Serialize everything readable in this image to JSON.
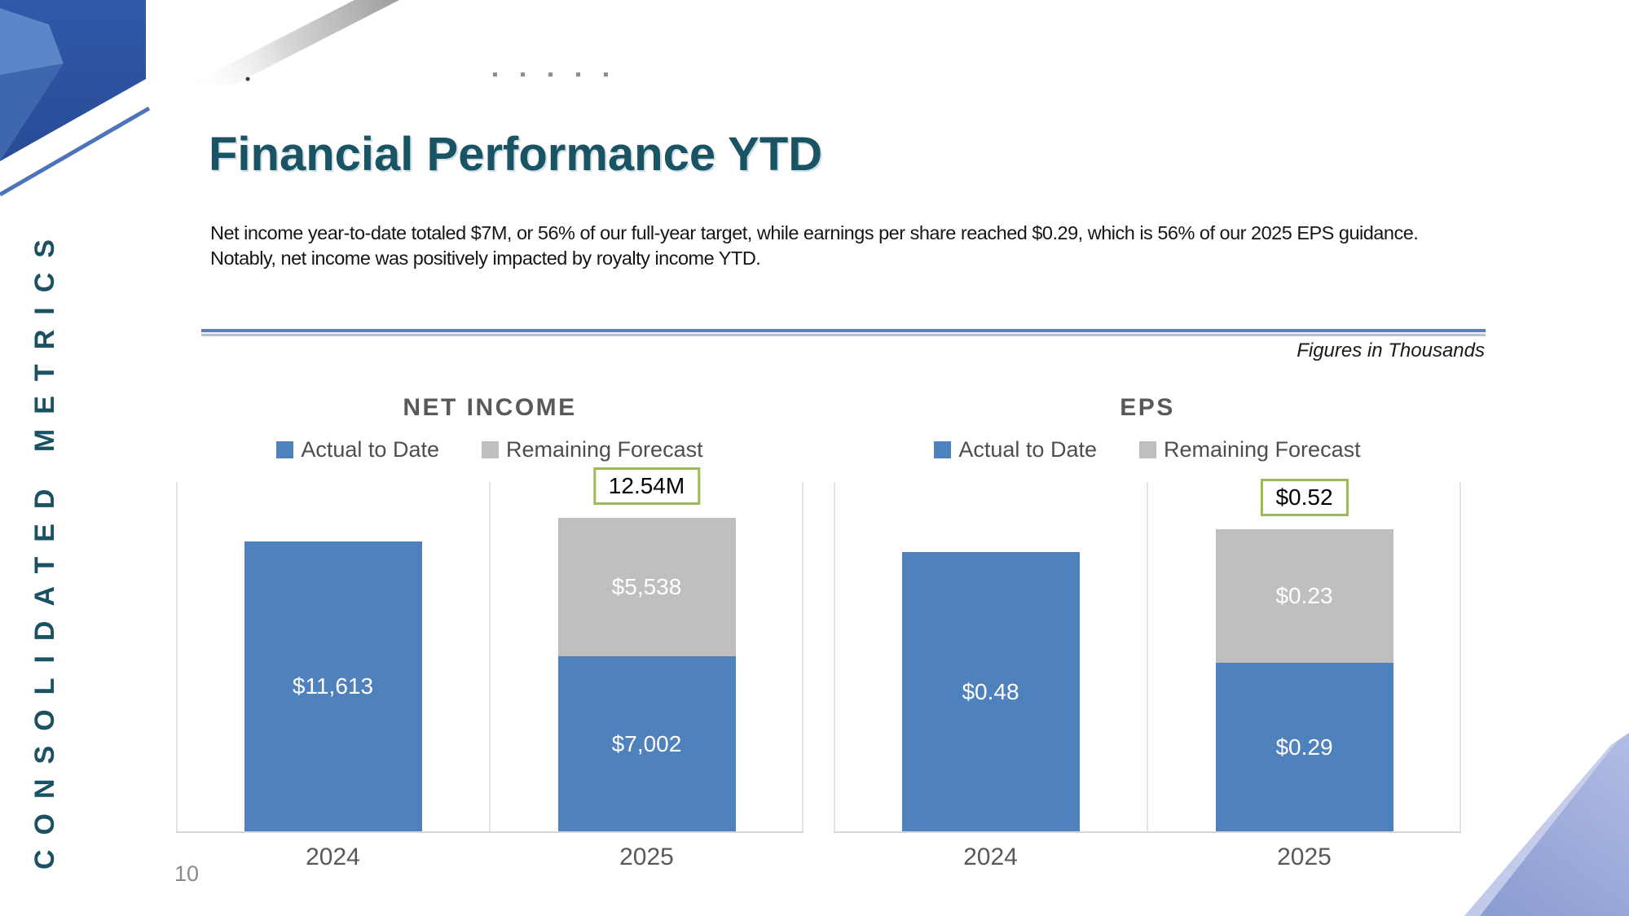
{
  "slide": {
    "title": "Financial Performance YTD",
    "body_text": "Net income year-to-date totaled $7M, or 56% of our full-year target, while earnings per share reached $0.29, which is 56% of our 2025 EPS guidance. Notably, net income was positively impacted by royalty income YTD.",
    "side_label": "CONSOLIDATED METRICS",
    "figures_note": "Figures in Thousands",
    "page_number": "10"
  },
  "colors": {
    "accent_teal": "#1A5263",
    "bar_actual_blue": "#4F81BD",
    "bar_forecast_gray": "#BFBFBF",
    "chart_text_gray": "#595959",
    "total_box_border_green": "#9BBB59",
    "divider_blue": "#5B7FB9",
    "axis_line_gray": "#D9D9D9"
  },
  "chart_data": [
    {
      "type": "bar",
      "stacked": true,
      "title": "NET INCOME",
      "categories": [
        "2024",
        "2025"
      ],
      "series": [
        {
          "name": "Actual to Date",
          "color": "#4F81BD",
          "values": [
            11613,
            7002
          ],
          "labels": [
            "$11,613",
            "$7,002"
          ]
        },
        {
          "name": "Remaining Forecast",
          "color": "#BFBFBF",
          "values": [
            null,
            5538
          ],
          "labels": [
            null,
            "$5,538"
          ]
        }
      ],
      "total_labels": [
        null,
        "12.54M"
      ],
      "xlabel": "",
      "ylabel": "",
      "ylim": [
        0,
        14000
      ],
      "units": "thousands of dollars",
      "legend_position": "top",
      "gridlines": "category separator lines only, no y-axis ticks"
    },
    {
      "type": "bar",
      "stacked": true,
      "title": "EPS",
      "categories": [
        "2024",
        "2025"
      ],
      "series": [
        {
          "name": "Actual to Date",
          "color": "#4F81BD",
          "values": [
            0.48,
            0.29
          ],
          "labels": [
            "$0.48",
            "$0.29"
          ]
        },
        {
          "name": "Remaining Forecast",
          "color": "#BFBFBF",
          "values": [
            null,
            0.23
          ],
          "labels": [
            null,
            "$0.23"
          ]
        }
      ],
      "total_labels": [
        null,
        "$0.52"
      ],
      "xlabel": "",
      "ylabel": "",
      "ylim": [
        0,
        0.6
      ],
      "units": "dollars per share",
      "legend_position": "top",
      "gridlines": "category separator lines only, no y-axis ticks"
    }
  ]
}
